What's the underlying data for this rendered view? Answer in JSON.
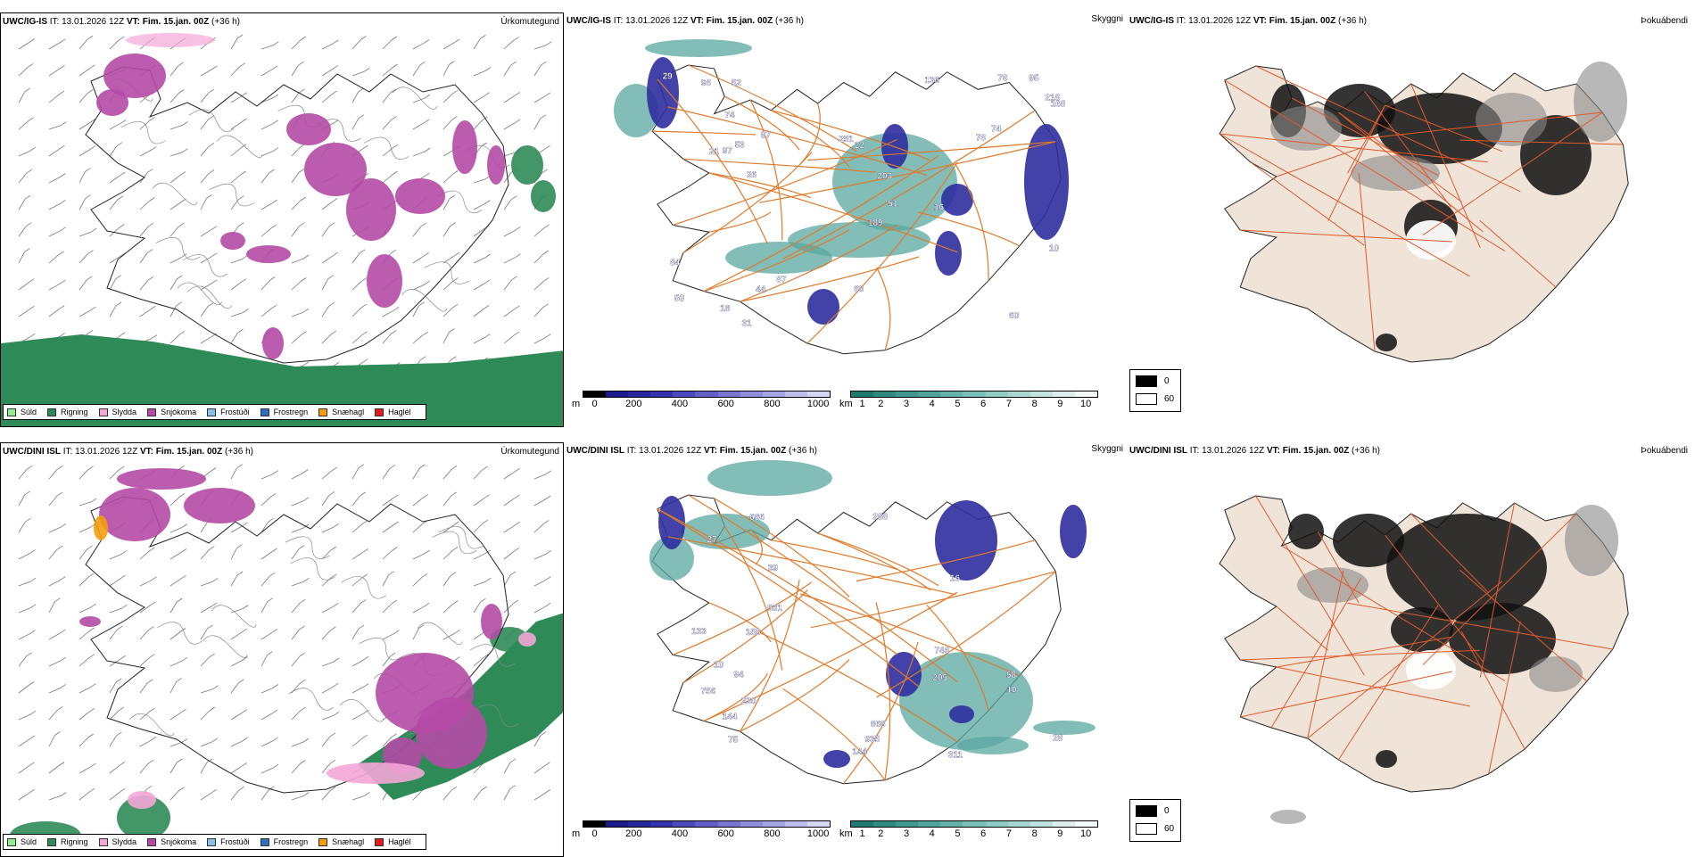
{
  "rows": [
    {
      "model": "UWC/IG-IS",
      "init": " IT: 13.01.2026 12Z ",
      "vt_label": "VT: Fim. 15.jan. 00Z",
      "lead": " (+36 h)",
      "labels": [
        {
          "v": "29"
        },
        {
          "v": "98"
        },
        {
          "v": "80"
        },
        {
          "v": "21"
        },
        {
          "v": "84"
        },
        {
          "v": "251"
        },
        {
          "v": "22"
        },
        {
          "v": "31"
        },
        {
          "v": "10"
        },
        {
          "v": "95"
        },
        {
          "v": "51"
        },
        {
          "v": "97"
        },
        {
          "v": "74"
        },
        {
          "v": "203"
        },
        {
          "v": "78"
        },
        {
          "v": "218"
        },
        {
          "v": "189"
        },
        {
          "v": "87"
        },
        {
          "v": "26"
        },
        {
          "v": "136"
        },
        {
          "v": "168"
        },
        {
          "v": "74"
        },
        {
          "v": "60"
        },
        {
          "v": "44"
        },
        {
          "v": "52"
        },
        {
          "v": "18"
        },
        {
          "v": "76"
        },
        {
          "v": "16"
        },
        {
          "v": "50"
        },
        {
          "v": "97"
        },
        {
          "v": "53"
        }
      ]
    },
    {
      "model": "UWC/DINI ISL",
      "init": " IT: 13.01.2026 12Z ",
      "vt_label": "VT: Fim. 15.jan. 00Z",
      "lead": " (+36 h)",
      "labels": [
        {
          "v": "230"
        },
        {
          "v": "133"
        },
        {
          "v": "144"
        },
        {
          "v": "158"
        },
        {
          "v": "16"
        },
        {
          "v": "311"
        },
        {
          "v": "144"
        },
        {
          "v": "27"
        },
        {
          "v": "10"
        },
        {
          "v": "39"
        },
        {
          "v": "94"
        },
        {
          "v": "10"
        },
        {
          "v": "205"
        },
        {
          "v": "746"
        },
        {
          "v": "935"
        },
        {
          "v": "531"
        },
        {
          "v": "686"
        },
        {
          "v": "28"
        },
        {
          "v": "756"
        },
        {
          "v": "868"
        },
        {
          "v": "288"
        },
        {
          "v": "75"
        },
        {
          "v": "58"
        }
      ]
    }
  ],
  "fields": {
    "precip_type": "Úrkomutegund",
    "clouds": "Skyggni",
    "fog": "Þokuábendi"
  },
  "precip_legend": [
    {
      "label": "Súld",
      "color": "#90ee90"
    },
    {
      "label": "Rigning",
      "color": "#2e8b57"
    },
    {
      "label": "Slydda",
      "color": "#f4a6d7"
    },
    {
      "label": "Snjókoma",
      "color": "#b54aa6"
    },
    {
      "label": "Frostúði",
      "color": "#87bfe8"
    },
    {
      "label": "Frostregn",
      "color": "#2f6fbf"
    },
    {
      "label": "Snæhagl",
      "color": "#f39c12"
    },
    {
      "label": "Haglél",
      "color": "#e41a1c"
    }
  ],
  "cbar_m": {
    "unit": "m",
    "ticks": [
      "0",
      "200",
      "400",
      "600",
      "800",
      "1000"
    ],
    "colors": [
      "#000000",
      "#1a1a8c",
      "#26279e",
      "#3333b0",
      "#4b4bbe",
      "#6060c8",
      "#7777d2",
      "#8e8edc",
      "#a5a5e5",
      "#bdbdee",
      "#d5d5f5"
    ]
  },
  "cbar_km": {
    "unit": "km",
    "ticks": [
      "1",
      "2",
      "3",
      "4",
      "5",
      "6",
      "7",
      "8",
      "9",
      "10"
    ],
    "colors": [
      "#1f7a72",
      "#2f8a82",
      "#409891",
      "#52a59e",
      "#65b2ab",
      "#7abfb9",
      "#90cbc6",
      "#a8d7d3",
      "#c1e3e0",
      "#dcefed",
      "#f3f9f8"
    ]
  },
  "fog_legend": {
    "black": "0",
    "white": "60"
  },
  "colors": {
    "rain": "#2e8b57",
    "snow": "#b54aa6",
    "sleet": "#f4a6d7",
    "snowpellet": "#f39c12",
    "road": "#e07a2a",
    "land_tan": "#f0e4d8",
    "vis_blue": "#2d2d9e",
    "vis_teal": "#5aa7a0"
  }
}
